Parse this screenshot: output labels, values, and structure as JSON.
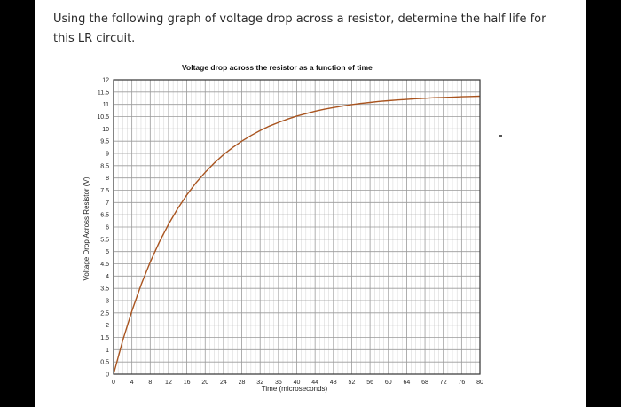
{
  "question": "Using the following graph of voltage drop across a resistor, determine the half life for\nthis LR circuit.",
  "chart_data": {
    "type": "line",
    "title": "Voltage drop across the resistor as a function of time",
    "xlabel": "Time (microseconds)",
    "ylabel": "Voltage Drop Across Resistor (V)",
    "xlim": [
      0,
      80
    ],
    "ylim": [
      0,
      12
    ],
    "xticks": [
      0,
      4,
      8,
      12,
      16,
      20,
      24,
      28,
      32,
      36,
      40,
      44,
      48,
      52,
      56,
      60,
      64,
      68,
      72,
      76,
      80
    ],
    "yticks": [
      0,
      0.5,
      1,
      1.5,
      2,
      2.5,
      3,
      3.5,
      4,
      4.5,
      5,
      5.5,
      6,
      6.5,
      7,
      7.5,
      8,
      8.5,
      9,
      9.5,
      10,
      10.5,
      11,
      11.5,
      12
    ],
    "grid": true,
    "series": [
      {
        "x": [
          0,
          2,
          4,
          6,
          8,
          10,
          12,
          14,
          16,
          18,
          20,
          22,
          24,
          26,
          28,
          30,
          32,
          34,
          36,
          38,
          40,
          42,
          44,
          46,
          48,
          50,
          52,
          54,
          56,
          58,
          60,
          62,
          64,
          66,
          68,
          70,
          72,
          74,
          76,
          78,
          80
        ],
        "y": [
          0,
          1.37,
          2.58,
          3.64,
          4.57,
          5.39,
          6.11,
          6.75,
          7.31,
          7.8,
          8.23,
          8.61,
          8.95,
          9.24,
          9.5,
          9.73,
          9.93,
          10.11,
          10.26,
          10.4,
          10.52,
          10.62,
          10.72,
          10.8,
          10.87,
          10.93,
          10.99,
          11.04,
          11.08,
          11.12,
          11.15,
          11.18,
          11.2,
          11.23,
          11.25,
          11.27,
          11.28,
          11.29,
          11.31,
          11.32,
          11.33
        ],
        "color": "#a9541f"
      }
    ]
  }
}
